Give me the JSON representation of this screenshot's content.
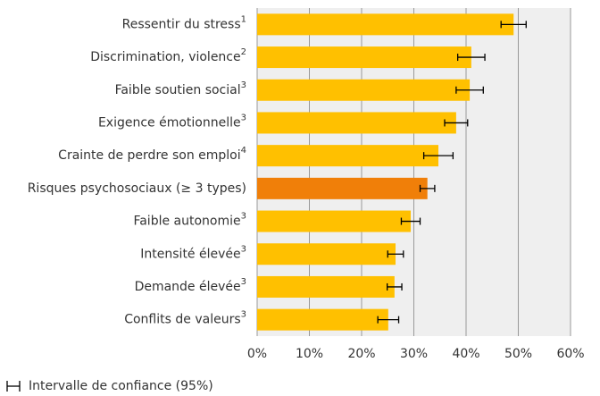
{
  "chart_data": {
    "type": "hbar",
    "categories": [
      "Ressentir du stress",
      "Discrimination, violence",
      "Faible soutien social",
      "Exigence émotionnelle",
      "Crainte de perdre son emploi",
      "Risques psychosociaux (≥ 3 types)",
      "Faible autonomie",
      "Intensité élevée",
      "Demande élevée",
      "Conflits de valeurs"
    ],
    "category_notes": [
      "1",
      "2",
      "3",
      "3",
      "4",
      null,
      "3",
      "3",
      "3",
      "3"
    ],
    "values": [
      49.1,
      41,
      40.7,
      38.1,
      34.7,
      32.6,
      29.4,
      26.5,
      26.3,
      25.1
    ],
    "errors": [
      2.4,
      2.6,
      2.6,
      2.2,
      2.8,
      1.4,
      1.8,
      1.5,
      1.4,
      2.0
    ],
    "colors": [
      "#ffc000",
      "#ffc000",
      "#ffc000",
      "#ffc000",
      "#ffc000",
      "#f07f09",
      "#ffc000",
      "#ffc000",
      "#ffc000",
      "#ffc000"
    ],
    "xlim": [
      0,
      60
    ],
    "xticks": [
      {
        "value": 0,
        "label": "0%"
      },
      {
        "value": 10,
        "label": "10%"
      },
      {
        "value": 20,
        "label": "20%"
      },
      {
        "value": 30,
        "label": "30%"
      },
      {
        "value": 40,
        "label": "40%"
      },
      {
        "value": 50,
        "label": "50%"
      },
      {
        "value": 60,
        "label": "60%"
      }
    ],
    "grid": true,
    "legend": "Intervalle de confiance (95%)"
  }
}
